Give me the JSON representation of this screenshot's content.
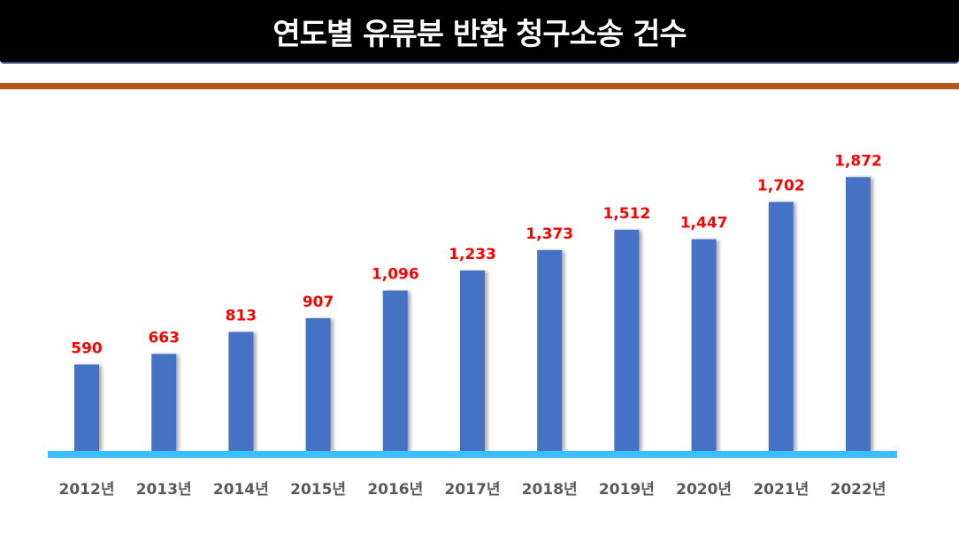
{
  "chart_data": {
    "type": "bar",
    "title": "연도별 유류분 반환 청구소송 건수",
    "categories": [
      "2012년",
      "2013년",
      "2014년",
      "2015년",
      "2016년",
      "2017년",
      "2018년",
      "2019년",
      "2020년",
      "2021년",
      "2022년"
    ],
    "values": [
      590,
      663,
      813,
      907,
      1096,
      1233,
      1373,
      1512,
      1447,
      1702,
      1872
    ],
    "data_labels": [
      "590",
      "663",
      "813",
      "907",
      "1,096",
      "1,233",
      "1,373",
      "1,512",
      "1,447",
      "1,702",
      "1,872"
    ],
    "xlabel": "",
    "ylabel": "",
    "ylim": [
      0,
      1880
    ],
    "grid": false,
    "legend": "none",
    "colors": {
      "bar": "#4472c4",
      "label": "#ff0000",
      "axis": "#3bbfff",
      "title_bg": "#000000",
      "rule": "#b5541b"
    }
  }
}
